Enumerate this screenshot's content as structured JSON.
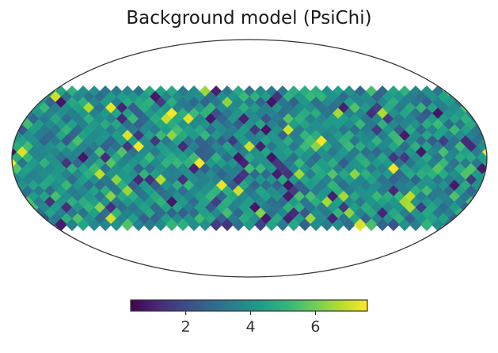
{
  "chart_data": {
    "type": "heatmap",
    "title": "Background model (PsiChi)",
    "projection": "mollweide",
    "colormap": "viridis",
    "colorbar": {
      "range": [
        0.3,
        7.6
      ],
      "ticks": [
        2,
        4,
        6
      ],
      "tick_labels": [
        "2",
        "4",
        "6"
      ],
      "placement": "bottom"
    },
    "pixel_values_note_free": true,
    "grid": false
  },
  "colors": {
    "viridis_stops": [
      "#440154",
      "#482777",
      "#3e4989",
      "#31688e",
      "#26828e",
      "#1f9e89",
      "#35b779",
      "#6ece58",
      "#b5de2b",
      "#fde725"
    ],
    "frame": "#333333"
  }
}
